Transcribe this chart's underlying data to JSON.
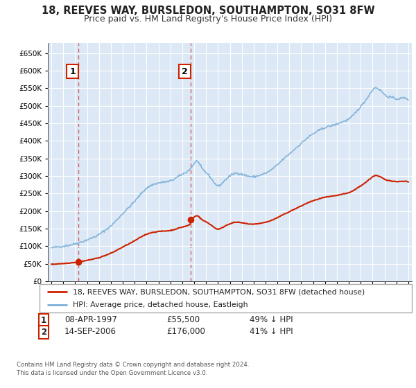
{
  "title": "18, REEVES WAY, BURSLEDON, SOUTHAMPTON, SO31 8FW",
  "subtitle": "Price paid vs. HM Land Registry's House Price Index (HPI)",
  "background_color": "#ffffff",
  "plot_bg_color": "#dce8f5",
  "legend_line1": "18, REEVES WAY, BURSLEDON, SOUTHAMPTON, SO31 8FW (detached house)",
  "legend_line2": "HPI: Average price, detached house, Eastleigh",
  "ann1_label": "1",
  "ann1_date": "08-APR-1997",
  "ann1_price": "£55,500",
  "ann1_note": "49% ↓ HPI",
  "ann2_label": "2",
  "ann2_date": "14-SEP-2006",
  "ann2_price": "£176,000",
  "ann2_note": "41% ↓ HPI",
  "footer": "Contains HM Land Registry data © Crown copyright and database right 2024.\nThis data is licensed under the Open Government Licence v3.0.",
  "hpi_color": "#7aaed6",
  "price_color": "#cc2200",
  "vline_color": "#cc6666",
  "point1_x": 1997.27,
  "point1_y": 55500,
  "point2_x": 2006.71,
  "point2_y": 176000,
  "xmin": 1994.7,
  "xmax": 2025.3,
  "ymin": 0,
  "ymax": 680000,
  "yticks": [
    0,
    50000,
    100000,
    150000,
    200000,
    250000,
    300000,
    350000,
    400000,
    450000,
    500000,
    550000,
    600000,
    650000
  ],
  "xticks": [
    1995,
    1996,
    1997,
    1998,
    1999,
    2000,
    2001,
    2002,
    2003,
    2004,
    2005,
    2006,
    2007,
    2008,
    2009,
    2010,
    2011,
    2012,
    2013,
    2014,
    2015,
    2016,
    2017,
    2018,
    2019,
    2020,
    2021,
    2022,
    2023,
    2024,
    2025
  ]
}
